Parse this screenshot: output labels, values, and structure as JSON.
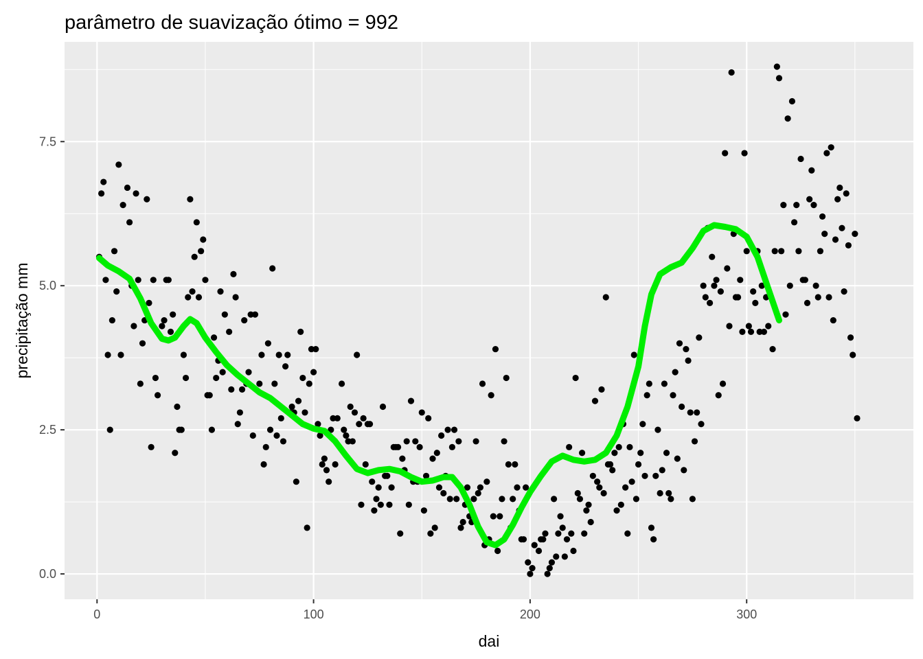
{
  "chart_data": {
    "type": "scatter",
    "title": "parâmetro de suavização ótimo = 992",
    "xlabel": "dai",
    "ylabel": "precipitação mm",
    "xlim": [
      -15,
      377
    ],
    "ylim": [
      -0.44,
      9.23
    ],
    "x_ticks": [
      0,
      100,
      200,
      300
    ],
    "x_tick_labels": [
      "0",
      "100",
      "200",
      "300"
    ],
    "y_ticks": [
      0,
      2.5,
      5,
      7.5
    ],
    "y_tick_labels": [
      "0.0",
      "2.5",
      "5.0",
      "7.5"
    ],
    "x_minor": [
      50,
      150,
      250,
      350
    ],
    "y_minor": [
      1.25,
      3.75,
      6.25,
      8.75
    ],
    "grid": true,
    "legend": "none",
    "colors": {
      "panel": "#ebebeb",
      "grid": "#ffffff",
      "points": "#000000",
      "smooth": "#00ee00"
    },
    "points": [
      [
        1,
        5.5
      ],
      [
        2,
        6.6
      ],
      [
        3,
        6.8
      ],
      [
        4,
        5.1
      ],
      [
        5,
        3.8
      ],
      [
        6,
        2.5
      ],
      [
        7,
        4.4
      ],
      [
        8,
        5.6
      ],
      [
        9,
        4.9
      ],
      [
        10,
        7.1
      ],
      [
        11,
        3.8
      ],
      [
        12,
        6.4
      ],
      [
        14,
        6.7
      ],
      [
        15,
        6.1
      ],
      [
        16,
        5.0
      ],
      [
        17,
        4.3
      ],
      [
        18,
        6.6
      ],
      [
        19,
        5.1
      ],
      [
        20,
        3.3
      ],
      [
        21,
        4.0
      ],
      [
        22,
        4.4
      ],
      [
        23,
        6.5
      ],
      [
        24,
        4.7
      ],
      [
        25,
        2.2
      ],
      [
        26,
        5.1
      ],
      [
        27,
        3.4
      ],
      [
        28,
        3.1
      ],
      [
        30,
        4.3
      ],
      [
        31,
        4.4
      ],
      [
        32,
        5.1
      ],
      [
        33,
        5.1
      ],
      [
        34,
        4.2
      ],
      [
        35,
        4.5
      ],
      [
        36,
        2.1
      ],
      [
        37,
        2.9
      ],
      [
        38,
        2.5
      ],
      [
        39,
        2.5
      ],
      [
        40,
        3.8
      ],
      [
        41,
        3.4
      ],
      [
        42,
        4.8
      ],
      [
        43,
        6.5
      ],
      [
        44,
        4.9
      ],
      [
        45,
        5.5
      ],
      [
        46,
        6.1
      ],
      [
        47,
        4.8
      ],
      [
        48,
        5.6
      ],
      [
        49,
        5.8
      ],
      [
        50,
        5.1
      ],
      [
        51,
        3.1
      ],
      [
        52,
        3.1
      ],
      [
        53,
        2.5
      ],
      [
        54,
        4.1
      ],
      [
        55,
        3.4
      ],
      [
        56,
        3.7
      ],
      [
        57,
        4.9
      ],
      [
        58,
        3.5
      ],
      [
        59,
        4.5
      ],
      [
        61,
        4.2
      ],
      [
        62,
        3.2
      ],
      [
        63,
        5.2
      ],
      [
        64,
        4.8
      ],
      [
        65,
        2.6
      ],
      [
        66,
        2.8
      ],
      [
        67,
        3.2
      ],
      [
        68,
        4.4
      ],
      [
        69,
        3.3
      ],
      [
        70,
        3.5
      ],
      [
        71,
        4.5
      ],
      [
        72,
        2.4
      ],
      [
        73,
        4.5
      ],
      [
        75,
        3.3
      ],
      [
        76,
        3.8
      ],
      [
        77,
        1.9
      ],
      [
        78,
        2.2
      ],
      [
        79,
        4.0
      ],
      [
        80,
        2.5
      ],
      [
        81,
        5.3
      ],
      [
        82,
        3.3
      ],
      [
        83,
        2.4
      ],
      [
        84,
        3.8
      ],
      [
        85,
        2.7
      ],
      [
        86,
        2.3
      ],
      [
        87,
        3.6
      ],
      [
        88,
        3.8
      ],
      [
        89,
        2.8
      ],
      [
        90,
        2.9
      ],
      [
        91,
        2.8
      ],
      [
        92,
        1.6
      ],
      [
        93,
        3.0
      ],
      [
        94,
        4.2
      ],
      [
        95,
        3.4
      ],
      [
        96,
        2.8
      ],
      [
        97,
        0.8
      ],
      [
        98,
        3.3
      ],
      [
        99,
        3.9
      ],
      [
        100,
        3.5
      ],
      [
        101,
        3.9
      ],
      [
        102,
        2.6
      ],
      [
        103,
        2.4
      ],
      [
        104,
        1.9
      ],
      [
        105,
        2.0
      ],
      [
        106,
        1.8
      ],
      [
        107,
        1.6
      ],
      [
        108,
        2.5
      ],
      [
        109,
        2.7
      ],
      [
        110,
        1.9
      ],
      [
        111,
        2.7
      ],
      [
        113,
        3.3
      ],
      [
        114,
        2.5
      ],
      [
        115,
        2.4
      ],
      [
        116,
        2.3
      ],
      [
        117,
        2.9
      ],
      [
        118,
        2.3
      ],
      [
        119,
        2.8
      ],
      [
        120,
        3.8
      ],
      [
        121,
        2.6
      ],
      [
        122,
        1.2
      ],
      [
        123,
        2.7
      ],
      [
        124,
        1.9
      ],
      [
        125,
        2.6
      ],
      [
        126,
        2.6
      ],
      [
        127,
        1.6
      ],
      [
        128,
        1.1
      ],
      [
        129,
        1.3
      ],
      [
        130,
        1.5
      ],
      [
        131,
        1.2
      ],
      [
        132,
        2.9
      ],
      [
        133,
        1.7
      ],
      [
        134,
        1.7
      ],
      [
        135,
        1.2
      ],
      [
        136,
        1.5
      ],
      [
        137,
        2.2
      ],
      [
        138,
        2.2
      ],
      [
        139,
        2.2
      ],
      [
        140,
        0.7
      ],
      [
        141,
        2.0
      ],
      [
        142,
        1.8
      ],
      [
        143,
        2.3
      ],
      [
        144,
        1.2
      ],
      [
        145,
        3.0
      ],
      [
        146,
        1.6
      ],
      [
        147,
        2.3
      ],
      [
        148,
        1.6
      ],
      [
        149,
        2.2
      ],
      [
        150,
        2.8
      ],
      [
        151,
        1.1
      ],
      [
        152,
        1.7
      ],
      [
        153,
        2.7
      ],
      [
        154,
        0.7
      ],
      [
        155,
        2.0
      ],
      [
        156,
        0.8
      ],
      [
        157,
        2.1
      ],
      [
        158,
        1.5
      ],
      [
        159,
        2.4
      ],
      [
        160,
        1.4
      ],
      [
        161,
        1.7
      ],
      [
        162,
        2.5
      ],
      [
        163,
        1.3
      ],
      [
        164,
        2.2
      ],
      [
        165,
        2.5
      ],
      [
        166,
        1.3
      ],
      [
        167,
        2.3
      ],
      [
        168,
        0.8
      ],
      [
        169,
        0.9
      ],
      [
        170,
        1.2
      ],
      [
        171,
        1.5
      ],
      [
        172,
        1.0
      ],
      [
        173,
        0.9
      ],
      [
        174,
        1.3
      ],
      [
        175,
        2.3
      ],
      [
        176,
        1.4
      ],
      [
        177,
        1.5
      ],
      [
        178,
        3.3
      ],
      [
        179,
        0.5
      ],
      [
        180,
        1.6
      ],
      [
        181,
        0.6
      ],
      [
        182,
        3.1
      ],
      [
        183,
        1.0
      ],
      [
        184,
        3.9
      ],
      [
        185,
        0.4
      ],
      [
        186,
        1.0
      ],
      [
        187,
        1.3
      ],
      [
        188,
        2.3
      ],
      [
        189,
        3.4
      ],
      [
        190,
        1.9
      ],
      [
        191,
        0.8
      ],
      [
        192,
        1.3
      ],
      [
        193,
        1.9
      ],
      [
        194,
        1.5
      ],
      [
        195,
        1.1
      ],
      [
        196,
        0.6
      ],
      [
        197,
        0.6
      ],
      [
        198,
        1.5
      ],
      [
        199,
        0.2
      ],
      [
        200,
        0.0
      ],
      [
        201,
        0.1
      ],
      [
        202,
        0.5
      ],
      [
        204,
        0.4
      ],
      [
        205,
        0.6
      ],
      [
        206,
        0.6
      ],
      [
        207,
        0.7
      ],
      [
        208,
        0.0
      ],
      [
        209,
        0.1
      ],
      [
        210,
        0.2
      ],
      [
        211,
        1.3
      ],
      [
        212,
        0.3
      ],
      [
        213,
        0.7
      ],
      [
        214,
        1.0
      ],
      [
        215,
        0.8
      ],
      [
        216,
        0.3
      ],
      [
        217,
        0.6
      ],
      [
        218,
        2.2
      ],
      [
        219,
        0.7
      ],
      [
        220,
        0.4
      ],
      [
        221,
        3.4
      ],
      [
        222,
        1.4
      ],
      [
        223,
        1.3
      ],
      [
        224,
        2.1
      ],
      [
        225,
        0.7
      ],
      [
        226,
        1.1
      ],
      [
        227,
        1.2
      ],
      [
        228,
        0.9
      ],
      [
        229,
        1.7
      ],
      [
        230,
        3.0
      ],
      [
        231,
        1.6
      ],
      [
        232,
        1.5
      ],
      [
        233,
        3.2
      ],
      [
        234,
        1.4
      ],
      [
        235,
        4.8
      ],
      [
        236,
        1.9
      ],
      [
        237,
        1.9
      ],
      [
        238,
        1.8
      ],
      [
        239,
        2.1
      ],
      [
        240,
        1.1
      ],
      [
        241,
        2.2
      ],
      [
        242,
        1.2
      ],
      [
        243,
        2.6
      ],
      [
        244,
        1.5
      ],
      [
        245,
        0.7
      ],
      [
        246,
        2.2
      ],
      [
        247,
        1.6
      ],
      [
        248,
        3.8
      ],
      [
        249,
        1.3
      ],
      [
        250,
        1.9
      ],
      [
        251,
        2.1
      ],
      [
        252,
        2.6
      ],
      [
        253,
        1.7
      ],
      [
        254,
        3.1
      ],
      [
        255,
        3.3
      ],
      [
        256,
        0.8
      ],
      [
        257,
        0.6
      ],
      [
        258,
        1.7
      ],
      [
        259,
        2.5
      ],
      [
        260,
        1.4
      ],
      [
        261,
        1.8
      ],
      [
        262,
        3.3
      ],
      [
        263,
        2.1
      ],
      [
        264,
        1.4
      ],
      [
        265,
        1.3
      ],
      [
        266,
        3.1
      ],
      [
        267,
        3.5
      ],
      [
        268,
        2.0
      ],
      [
        269,
        4.0
      ],
      [
        270,
        2.9
      ],
      [
        271,
        1.8
      ],
      [
        272,
        3.9
      ],
      [
        273,
        3.7
      ],
      [
        274,
        2.8
      ],
      [
        275,
        1.3
      ],
      [
        276,
        2.3
      ],
      [
        277,
        2.8
      ],
      [
        278,
        4.1
      ],
      [
        279,
        2.6
      ],
      [
        280,
        5.0
      ],
      [
        281,
        4.8
      ],
      [
        282,
        6.0
      ],
      [
        283,
        4.7
      ],
      [
        284,
        5.5
      ],
      [
        285,
        5.0
      ],
      [
        286,
        5.1
      ],
      [
        287,
        3.1
      ],
      [
        288,
        4.9
      ],
      [
        289,
        3.3
      ],
      [
        290,
        7.3
      ],
      [
        291,
        5.3
      ],
      [
        292,
        4.3
      ],
      [
        293,
        8.7
      ],
      [
        294,
        5.9
      ],
      [
        295,
        4.8
      ],
      [
        296,
        4.8
      ],
      [
        297,
        5.1
      ],
      [
        298,
        4.2
      ],
      [
        299,
        7.3
      ],
      [
        300,
        5.6
      ],
      [
        301,
        4.3
      ],
      [
        302,
        4.2
      ],
      [
        303,
        4.9
      ],
      [
        304,
        4.7
      ],
      [
        305,
        5.6
      ],
      [
        306,
        4.2
      ],
      [
        307,
        5.0
      ],
      [
        308,
        4.2
      ],
      [
        309,
        4.8
      ],
      [
        310,
        4.3
      ],
      [
        312,
        3.9
      ],
      [
        313,
        5.6
      ],
      [
        314,
        8.8
      ],
      [
        315,
        8.6
      ],
      [
        316,
        5.6
      ],
      [
        317,
        6.4
      ],
      [
        318,
        4.5
      ],
      [
        319,
        7.9
      ],
      [
        320,
        5.0
      ],
      [
        321,
        8.2
      ],
      [
        322,
        6.1
      ],
      [
        323,
        6.4
      ],
      [
        324,
        5.6
      ],
      [
        325,
        7.2
      ],
      [
        326,
        5.1
      ],
      [
        327,
        5.1
      ],
      [
        328,
        4.7
      ],
      [
        329,
        6.5
      ],
      [
        330,
        7.0
      ],
      [
        331,
        6.4
      ],
      [
        332,
        5.0
      ],
      [
        333,
        4.8
      ],
      [
        334,
        5.6
      ],
      [
        335,
        6.2
      ],
      [
        336,
        5.9
      ],
      [
        337,
        7.3
      ],
      [
        338,
        4.8
      ],
      [
        339,
        7.4
      ],
      [
        340,
        4.4
      ],
      [
        341,
        5.8
      ],
      [
        342,
        6.5
      ],
      [
        343,
        6.7
      ],
      [
        344,
        6.0
      ],
      [
        345,
        4.9
      ],
      [
        346,
        6.6
      ],
      [
        347,
        5.7
      ],
      [
        348,
        4.1
      ],
      [
        349,
        3.8
      ],
      [
        350,
        5.9
      ],
      [
        351,
        2.7
      ]
    ],
    "smooth": [
      [
        1,
        5.48
      ],
      [
        5,
        5.35
      ],
      [
        10,
        5.25
      ],
      [
        15,
        5.12
      ],
      [
        20,
        4.78
      ],
      [
        25,
        4.35
      ],
      [
        30,
        4.08
      ],
      [
        33,
        4.05
      ],
      [
        36,
        4.1
      ],
      [
        40,
        4.3
      ],
      [
        43,
        4.42
      ],
      [
        46,
        4.35
      ],
      [
        50,
        4.1
      ],
      [
        55,
        3.85
      ],
      [
        60,
        3.62
      ],
      [
        65,
        3.45
      ],
      [
        70,
        3.3
      ],
      [
        75,
        3.15
      ],
      [
        80,
        3.05
      ],
      [
        85,
        2.9
      ],
      [
        90,
        2.75
      ],
      [
        95,
        2.6
      ],
      [
        100,
        2.52
      ],
      [
        105,
        2.48
      ],
      [
        110,
        2.3
      ],
      [
        115,
        2.05
      ],
      [
        120,
        1.82
      ],
      [
        125,
        1.75
      ],
      [
        130,
        1.8
      ],
      [
        135,
        1.82
      ],
      [
        140,
        1.78
      ],
      [
        145,
        1.68
      ],
      [
        150,
        1.6
      ],
      [
        155,
        1.62
      ],
      [
        160,
        1.68
      ],
      [
        164,
        1.68
      ],
      [
        168,
        1.5
      ],
      [
        172,
        1.2
      ],
      [
        176,
        0.82
      ],
      [
        180,
        0.55
      ],
      [
        184,
        0.5
      ],
      [
        188,
        0.6
      ],
      [
        192,
        0.85
      ],
      [
        196,
        1.15
      ],
      [
        200,
        1.42
      ],
      [
        205,
        1.7
      ],
      [
        210,
        1.95
      ],
      [
        215,
        2.05
      ],
      [
        220,
        1.98
      ],
      [
        225,
        1.95
      ],
      [
        230,
        1.98
      ],
      [
        235,
        2.1
      ],
      [
        240,
        2.4
      ],
      [
        245,
        2.9
      ],
      [
        250,
        3.6
      ],
      [
        253,
        4.3
      ],
      [
        256,
        4.85
      ],
      [
        260,
        5.2
      ],
      [
        265,
        5.32
      ],
      [
        270,
        5.4
      ],
      [
        275,
        5.65
      ],
      [
        280,
        5.95
      ],
      [
        285,
        6.05
      ],
      [
        290,
        6.02
      ],
      [
        295,
        5.98
      ],
      [
        300,
        5.85
      ],
      [
        305,
        5.5
      ],
      [
        310,
        4.95
      ],
      [
        315,
        4.4
      ]
    ]
  }
}
